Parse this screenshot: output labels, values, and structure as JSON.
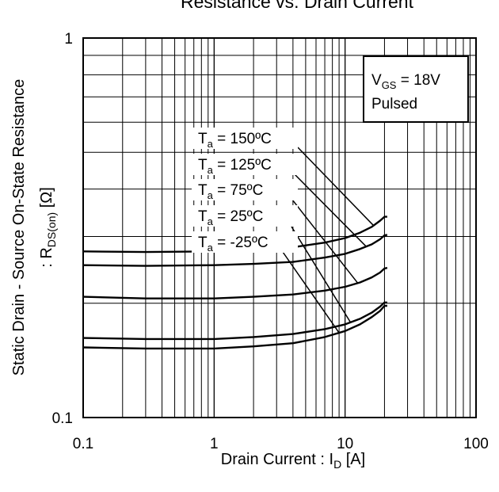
{
  "chart_data": {
    "type": "line",
    "title": "Resistance vs. Drain Current",
    "xlabel": {
      "main": "Drain Current : I",
      "sub": "D",
      "unit": " [A]"
    },
    "ylabel": {
      "line1": "Static Drain - Source On-State Resistance",
      "line2_prefix": ": R",
      "line2_sub": "DS(on)",
      "line2_unit": " [Ω]"
    },
    "x_scale": "log",
    "y_scale": "log",
    "xlim": [
      0.1,
      100
    ],
    "ylim": [
      0.1,
      1
    ],
    "x_ticks": [
      {
        "value": 0.1,
        "label": "0.1"
      },
      {
        "value": 1,
        "label": "1"
      },
      {
        "value": 10,
        "label": "10"
      },
      {
        "value": 100,
        "label": "100"
      }
    ],
    "y_ticks": [
      {
        "value": 0.1,
        "label": "0.1"
      },
      {
        "value": 1,
        "label": "1"
      }
    ],
    "grid": true,
    "legend_box": {
      "line1_prefix": "V",
      "line1_sub": "GS",
      "line1_suffix": " = 18V",
      "line2": "Pulsed",
      "placement": "top-right"
    },
    "series": [
      {
        "name": "150ºC",
        "label_prefix": "T",
        "label_sub": "a",
        "label_suffix": " = 150ºC",
        "x": [
          0.1,
          0.3,
          1,
          2,
          4,
          7,
          10,
          13,
          16,
          18.5,
          20,
          21
        ],
        "y": [
          0.274,
          0.273,
          0.274,
          0.277,
          0.281,
          0.289,
          0.297,
          0.307,
          0.318,
          0.33,
          0.338,
          0.338
        ]
      },
      {
        "name": "125ºC",
        "label_prefix": "T",
        "label_sub": "a",
        "label_suffix": " = 125ºC",
        "x": [
          0.1,
          0.3,
          1,
          2,
          4,
          7,
          10,
          13,
          16,
          18.5,
          20,
          21
        ],
        "y": [
          0.252,
          0.251,
          0.252,
          0.254,
          0.257,
          0.264,
          0.27,
          0.278,
          0.286,
          0.295,
          0.302,
          0.303
        ]
      },
      {
        "name": "75ºC",
        "label_prefix": "T",
        "label_sub": "a",
        "label_suffix": " = 75ºC",
        "x": [
          0.1,
          0.3,
          1,
          2,
          4,
          7,
          10,
          13,
          16,
          18.5,
          20,
          21
        ],
        "y": [
          0.208,
          0.206,
          0.206,
          0.208,
          0.211,
          0.216,
          0.221,
          0.227,
          0.234,
          0.241,
          0.247,
          0.248
        ]
      },
      {
        "name": "25ºC",
        "label_prefix": "T",
        "label_sub": "a",
        "label_suffix": " = 25ºC",
        "x": [
          0.1,
          0.3,
          1,
          2,
          4,
          7,
          10,
          13,
          16,
          18.5,
          20,
          21
        ],
        "y": [
          0.162,
          0.161,
          0.161,
          0.163,
          0.166,
          0.171,
          0.176,
          0.182,
          0.189,
          0.196,
          0.201,
          0.201
        ]
      },
      {
        "name": "-25ºC",
        "label_prefix": "T",
        "label_sub": "a",
        "label_suffix": " = -25ºC",
        "x": [
          0.1,
          0.3,
          1,
          2,
          4,
          7,
          10,
          13,
          16,
          18.5,
          20,
          21
        ],
        "y": [
          0.153,
          0.152,
          0.152,
          0.154,
          0.157,
          0.163,
          0.169,
          0.176,
          0.184,
          0.191,
          0.197,
          0.197
        ]
      }
    ]
  }
}
